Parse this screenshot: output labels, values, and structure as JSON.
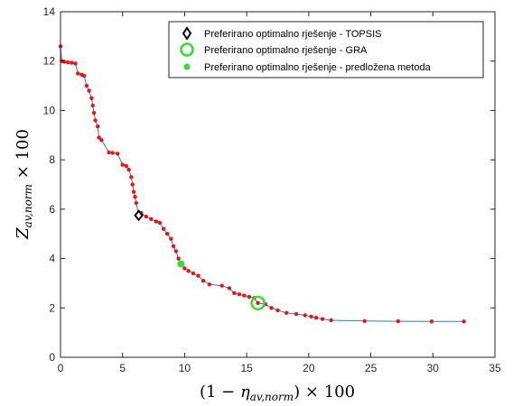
{
  "chart_data": {
    "type": "scatter",
    "xlim": [
      0,
      35
    ],
    "ylim": [
      0,
      14
    ],
    "x_ticks": [
      0,
      5,
      10,
      15,
      20,
      25,
      30,
      35
    ],
    "y_ticks": [
      0,
      2,
      4,
      6,
      8,
      10,
      12,
      14
    ],
    "xlabel": "(1 − η_av,norm) × 100",
    "ylabel": "Z_av,norm × 100",
    "grid": false,
    "legend_position": "top-right",
    "legend": [
      {
        "label": "Preferirano optimalno rješenje - TOPSIS",
        "marker": "diamond",
        "color": "#000000"
      },
      {
        "label": "Preferirano optimalno rješenje - GRA",
        "marker": "circle-open",
        "color": "#33dd33"
      },
      {
        "label": "Preferirano optimalno rješenje - predložena metoda",
        "marker": "circle-filled",
        "color": "#33dd33"
      }
    ],
    "front": {
      "line_color": "#2a7fbf",
      "point_color": "#ee1111",
      "points": [
        [
          0.0,
          12.6
        ],
        [
          0.1,
          12.0
        ],
        [
          0.3,
          11.97
        ],
        [
          0.6,
          11.95
        ],
        [
          0.9,
          11.93
        ],
        [
          1.2,
          11.9
        ],
        [
          1.4,
          11.5
        ],
        [
          1.7,
          11.45
        ],
        [
          1.9,
          11.4
        ],
        [
          2.1,
          11.0
        ],
        [
          2.3,
          10.8
        ],
        [
          2.5,
          10.5
        ],
        [
          2.6,
          10.2
        ],
        [
          2.7,
          9.9
        ],
        [
          2.8,
          9.6
        ],
        [
          3.0,
          9.35
        ],
        [
          3.1,
          8.9
        ],
        [
          3.3,
          8.8
        ],
        [
          3.9,
          8.3
        ],
        [
          4.2,
          8.28
        ],
        [
          4.6,
          8.25
        ],
        [
          5.0,
          7.8
        ],
        [
          5.3,
          7.75
        ],
        [
          5.5,
          7.6
        ],
        [
          5.7,
          7.3
        ],
        [
          5.8,
          7.0
        ],
        [
          5.9,
          6.7
        ],
        [
          6.0,
          6.5
        ],
        [
          6.1,
          6.25
        ],
        [
          6.3,
          5.75
        ],
        [
          6.5,
          5.85
        ],
        [
          6.9,
          5.7
        ],
        [
          7.3,
          5.6
        ],
        [
          7.7,
          5.5
        ],
        [
          8.0,
          5.45
        ],
        [
          8.3,
          5.2
        ],
        [
          8.6,
          5.0
        ],
        [
          8.9,
          4.8
        ],
        [
          9.1,
          4.5
        ],
        [
          9.3,
          4.3
        ],
        [
          9.5,
          4.0
        ],
        [
          9.7,
          3.78
        ],
        [
          10.0,
          3.6
        ],
        [
          10.3,
          3.5
        ],
        [
          10.7,
          3.4
        ],
        [
          11.1,
          3.3
        ],
        [
          11.5,
          3.1
        ],
        [
          12.0,
          2.95
        ],
        [
          13.0,
          2.9
        ],
        [
          13.6,
          2.8
        ],
        [
          14.0,
          2.6
        ],
        [
          14.4,
          2.55
        ],
        [
          14.8,
          2.5
        ],
        [
          15.2,
          2.45
        ],
        [
          15.6,
          2.4
        ],
        [
          15.9,
          2.2
        ],
        [
          16.5,
          2.15
        ],
        [
          17.0,
          2.0
        ],
        [
          17.5,
          1.9
        ],
        [
          18.2,
          1.8
        ],
        [
          19.0,
          1.75
        ],
        [
          19.7,
          1.7
        ],
        [
          20.2,
          1.65
        ],
        [
          20.6,
          1.6
        ],
        [
          21.1,
          1.55
        ],
        [
          21.8,
          1.5
        ],
        [
          24.5,
          1.47
        ],
        [
          27.2,
          1.46
        ],
        [
          29.9,
          1.45
        ],
        [
          32.5,
          1.45
        ]
      ]
    },
    "highlights": {
      "topsis": [
        6.3,
        5.75
      ],
      "gra": [
        15.9,
        2.2
      ],
      "proposed": [
        9.7,
        3.78
      ]
    }
  }
}
